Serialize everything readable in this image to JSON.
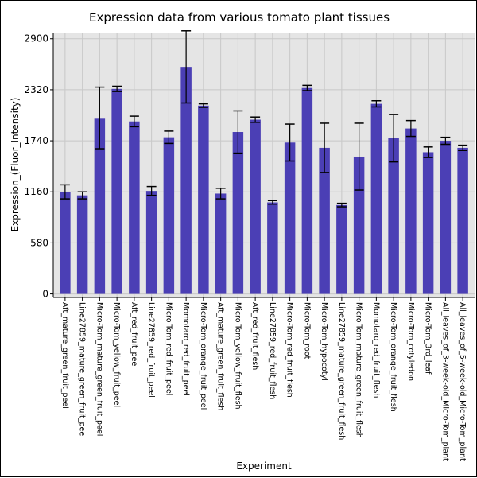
{
  "chart_data": {
    "type": "bar",
    "title": "Expression data from various tomato plant tissues",
    "xlabel": "Experiment",
    "ylabel": "Expression_(Fluor_Intensity)",
    "ylim": [
      -40,
      2970
    ],
    "yticks": [
      0,
      580,
      1160,
      1740,
      2320,
      2900
    ],
    "grid": true,
    "bar_color": "#4b3fb5",
    "plot_background": "#e5e5e5",
    "grid_color": "#c8c8c8",
    "categories": [
      "Aft_mature_green_fruit_peel",
      "Line27859_mature_green_fruit_peel",
      "Micro-Tom_mature_green_fruit_peel",
      "Micro-Tom_yellow_fruit_peel",
      "Aft_red_fruit_peel",
      "Line27859_red_fruit_peel",
      "Micro-Tom_red_fruit_peel",
      "Momotaro_red_fruit_peel",
      "Micro-Tom_orange_fruit_peel",
      "Aft_mature_green_fruit_flesh",
      "Micro-Tom_yellow_fruit_flesh",
      "Aft_red_fruit_flesh",
      "Line27859_red_fruit_flesh",
      "Micro-Tom_red_fruit_flesh",
      "Micro-Tom_root",
      "Micro-Tom_hypocotyl",
      "Line27859_mature_green_fruit_flesh",
      "Micro-Tom_mature_green_fruit_flesh",
      "Momotaro_red_fruit_flesh",
      "Micro-Tom_orange_fruit_flesh",
      "Micro-Tom_cotyledon",
      "Micro-Tom_3rd_leaf",
      "All_leaves_of_3-week-old_Micro-Tom_plant",
      "All_leaves_of_5-week-old_Micro-Tom_plant"
    ],
    "values": [
      1160,
      1120,
      2000,
      2330,
      1960,
      1170,
      1780,
      2580,
      2140,
      1140,
      1840,
      1980,
      1040,
      1720,
      2340,
      1660,
      1010,
      1560,
      2160,
      1770,
      1880,
      1610,
      1740,
      1660
    ],
    "error": [
      80,
      40,
      350,
      30,
      60,
      50,
      70,
      410,
      20,
      60,
      240,
      30,
      20,
      210,
      30,
      280,
      20,
      380,
      35,
      270,
      90,
      60,
      40,
      30
    ]
  }
}
